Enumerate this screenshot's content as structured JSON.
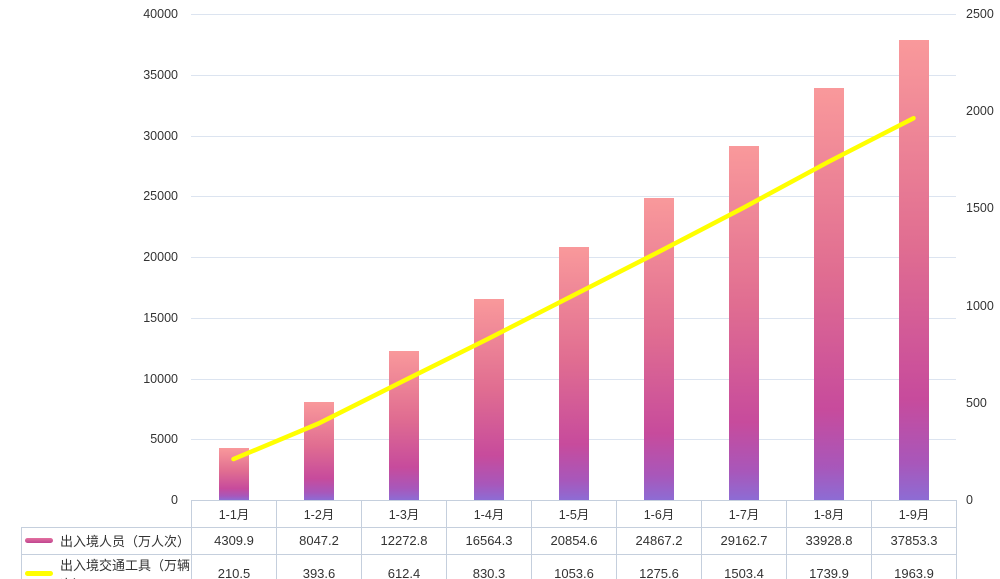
{
  "chart_data": {
    "type": "combo-bar-line",
    "categories": [
      "1-1月",
      "1-2月",
      "1-3月",
      "1-4月",
      "1-5月",
      "1-6月",
      "1-7月",
      "1-8月",
      "1-9月"
    ],
    "series": [
      {
        "name": "出入境人员（万人次）",
        "type": "bar",
        "axis": "left",
        "values": [
          4309.9,
          8047.2,
          12272.8,
          16564.3,
          20854.6,
          24867.2,
          29162.7,
          33928.8,
          37853.3
        ]
      },
      {
        "name": "出入境交通工具（万辆次）",
        "type": "line",
        "axis": "right",
        "values": [
          210.5,
          393.6,
          612.4,
          830.3,
          1053.6,
          1275.6,
          1503.4,
          1739.9,
          1963.9
        ]
      }
    ],
    "left_axis": {
      "min": 0,
      "max": 40000,
      "step": 5000,
      "tick_labels": [
        "40000",
        "35000",
        "30000",
        "25000",
        "20000",
        "15000",
        "10000",
        "5000",
        "0"
      ]
    },
    "right_axis": {
      "min": 0,
      "max": 2500,
      "step": 500,
      "tick_labels": [
        "2500",
        "2000",
        "1500",
        "1000",
        "500",
        "0"
      ]
    },
    "grid": true,
    "legend_position": "bottom-table-left"
  },
  "colors": {
    "background": "#ffffff",
    "text": "#333333",
    "gridline": "#dce4f0",
    "table_border": "#c5cfdd",
    "line": "#ffff00",
    "bar_gradient": [
      "#f9999b",
      "#e06d91",
      "#c74b9c",
      "#a857ba",
      "#8d6cd4"
    ],
    "bar_gradient_stops": [
      "0%",
      "45%",
      "78%",
      "92%",
      "100%"
    ],
    "legend_bar_swatch": [
      "#e4719f",
      "#bf4590"
    ],
    "legend_line_swatch": "#ffff00"
  }
}
